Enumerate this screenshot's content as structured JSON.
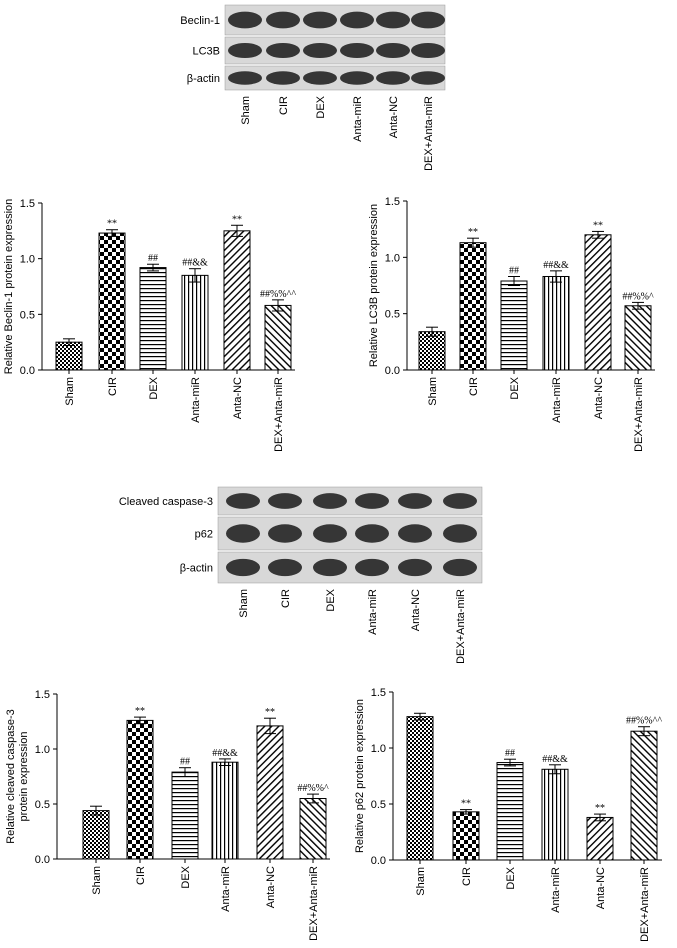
{
  "blots": [
    {
      "rows": [
        "Beclin-1",
        "LC3B",
        "β-actin"
      ],
      "lanes": [
        "Sham",
        "CIR",
        "DEX",
        "Anta-miR",
        "Anta-NC",
        "DEX+Anta-miR"
      ]
    },
    {
      "rows": [
        "Cleaved caspase-3",
        "p62",
        "β-actin"
      ],
      "lanes": [
        "Sham",
        "CIR",
        "DEX",
        "Anta-miR",
        "Anta-NC",
        "DEX+Anta-miR"
      ]
    }
  ],
  "chart_data": [
    {
      "type": "bar",
      "ylabel": [
        "Relative Beclin-1 protein expression"
      ],
      "color": "#000000",
      "categories": [
        "Sham",
        "CIR",
        "DEX",
        "Anta-miR",
        "Anta-NC",
        "DEX+Anta-miR"
      ],
      "values": [
        0.25,
        1.23,
        0.92,
        0.85,
        1.25,
        0.58
      ],
      "errors": [
        0.03,
        0.03,
        0.03,
        0.06,
        0.05,
        0.05
      ],
      "annotations": [
        null,
        "**",
        "##",
        "##&&",
        "**",
        "##%%^^"
      ],
      "ylim": [
        0,
        1.5
      ],
      "yticks": [
        {
          "value": 0,
          "label": "0.0"
        },
        0.5,
        {
          "value": 1,
          "label": "1.0"
        },
        1.5
      ]
    },
    {
      "type": "bar",
      "ylabel": [
        "Relative LC3B protein expression"
      ],
      "color": "#000000",
      "categories": [
        "Sham",
        "CIR",
        "DEX",
        "Anta-miR",
        "Anta-NC",
        "DEX+Anta-miR"
      ],
      "values": [
        0.34,
        1.13,
        0.79,
        0.83,
        1.2,
        0.57
      ],
      "errors": [
        0.04,
        0.04,
        0.04,
        0.05,
        0.03,
        0.03
      ],
      "annotations": [
        null,
        "**",
        "##",
        "##&&",
        "**",
        "##%%^"
      ],
      "ylim": [
        0,
        1.5
      ],
      "yticks": [
        {
          "value": 0,
          "label": "0.0"
        },
        0.5,
        {
          "value": 1,
          "label": "1.0"
        },
        1.5
      ]
    },
    {
      "type": "bar",
      "ylabel": [
        "Relative cleaved caspase-3",
        "protein expression"
      ],
      "color": "#000000",
      "categories": [
        "Sham",
        "CIR",
        "DEX",
        "Anta-miR",
        "Anta-NC",
        "DEX+Anta-miR"
      ],
      "values": [
        0.44,
        1.26,
        0.79,
        0.88,
        1.21,
        0.55
      ],
      "errors": [
        0.04,
        0.03,
        0.04,
        0.03,
        0.07,
        0.04
      ],
      "annotations": [
        null,
        "**",
        "##",
        "##&&",
        "**",
        "##%%^"
      ],
      "ylim": [
        0,
        1.5
      ],
      "yticks": [
        {
          "value": 0,
          "label": "0.0"
        },
        0.5,
        {
          "value": 1,
          "label": "1.0"
        },
        1.5
      ]
    },
    {
      "type": "bar",
      "ylabel": [
        "Relative p62 protein expression"
      ],
      "color": "#000000",
      "categories": [
        "Sham",
        "CIR",
        "DEX",
        "Anta-miR",
        "Anta-NC",
        "DEX+Anta-miR"
      ],
      "values": [
        1.28,
        0.43,
        0.87,
        0.81,
        0.38,
        1.15
      ],
      "errors": [
        0.03,
        0.02,
        0.03,
        0.04,
        0.03,
        0.04
      ],
      "annotations": [
        null,
        "**",
        "##",
        "##&&",
        "**",
        "##%%^^"
      ],
      "ylim": [
        0,
        1.5
      ],
      "yticks": [
        {
          "value": 0,
          "label": "0.0"
        },
        0.5,
        {
          "value": 1,
          "label": "1.0"
        },
        1.5
      ]
    }
  ]
}
